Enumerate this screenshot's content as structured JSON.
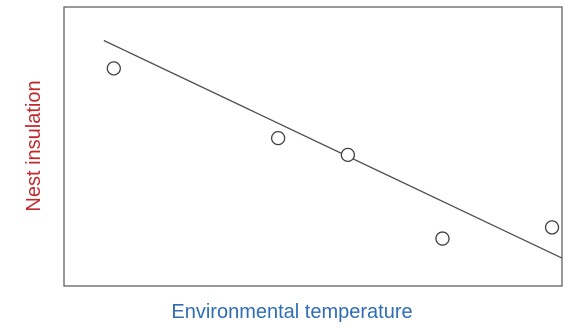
{
  "chart_data": {
    "type": "scatter",
    "title": "",
    "xlabel": "Environmental temperature",
    "ylabel": "Nest insulation",
    "xlim": [
      0,
      10
    ],
    "ylim": [
      0,
      10
    ],
    "grid": false,
    "axis_ticks": false,
    "points": [
      {
        "x": 1.0,
        "y": 7.8
      },
      {
        "x": 4.3,
        "y": 5.3
      },
      {
        "x": 5.7,
        "y": 4.7
      },
      {
        "x": 7.6,
        "y": 1.7
      },
      {
        "x": 9.8,
        "y": 2.1
      }
    ],
    "trendline": {
      "x": [
        0.8,
        10.0
      ],
      "y": [
        8.8,
        1.0
      ]
    },
    "colors": {
      "frame": "#606060",
      "marker_stroke": "#404040",
      "trendline": "#505050",
      "xlabel": "#2f6db5",
      "ylabel": "#c0282d"
    }
  }
}
